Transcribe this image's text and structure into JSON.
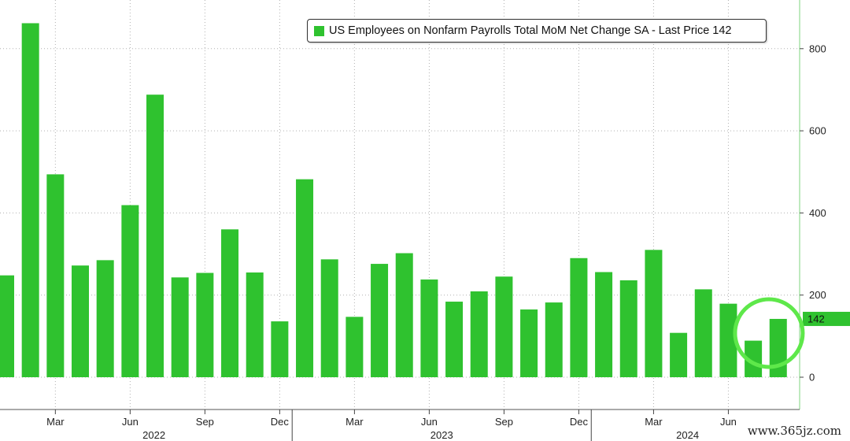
{
  "chart_data": {
    "type": "bar",
    "title": "",
    "xlabel": "",
    "ylabel": "",
    "ylim": [
      0,
      880
    ],
    "yticks": [
      0,
      200,
      400,
      600,
      800
    ],
    "grid": true,
    "legend": {
      "placement": "top-right",
      "label": "US Employees on Nonfarm Payrolls Total MoM Net Change SA - Last Price 142"
    },
    "last_price_label": "142",
    "categories": [
      "2022-01",
      "2022-02",
      "2022-03",
      "2022-04",
      "2022-05",
      "2022-06",
      "2022-07",
      "2022-08",
      "2022-09",
      "2022-10",
      "2022-11",
      "2022-12",
      "2023-01",
      "2023-02",
      "2023-03",
      "2023-04",
      "2023-05",
      "2023-06",
      "2023-07",
      "2023-08",
      "2023-09",
      "2023-10",
      "2023-11",
      "2023-12",
      "2024-01",
      "2024-02",
      "2024-03",
      "2024-04",
      "2024-05",
      "2024-06",
      "2024-07",
      "2024-08"
    ],
    "values": [
      248,
      862,
      494,
      272,
      285,
      419,
      688,
      243,
      254,
      360,
      255,
      136,
      482,
      287,
      147,
      276,
      302,
      238,
      184,
      209,
      245,
      165,
      182,
      290,
      256,
      236,
      310,
      108,
      214,
      179,
      89,
      142
    ],
    "x_tick_labels": [
      "Mar",
      "Jun",
      "Sep",
      "Dec",
      "Mar",
      "Jun",
      "Sep",
      "Dec",
      "Mar",
      "Jun"
    ],
    "year_labels": [
      "2022",
      "2023",
      "2024"
    ],
    "colors": {
      "bar": "#2fc22f",
      "axis": "#7ed67e",
      "grid": "#b0b0b0",
      "highlight_circle": "#5ee84a"
    },
    "annotation": "circle highlighting the last two bars"
  },
  "watermark": "www.365jz.com"
}
